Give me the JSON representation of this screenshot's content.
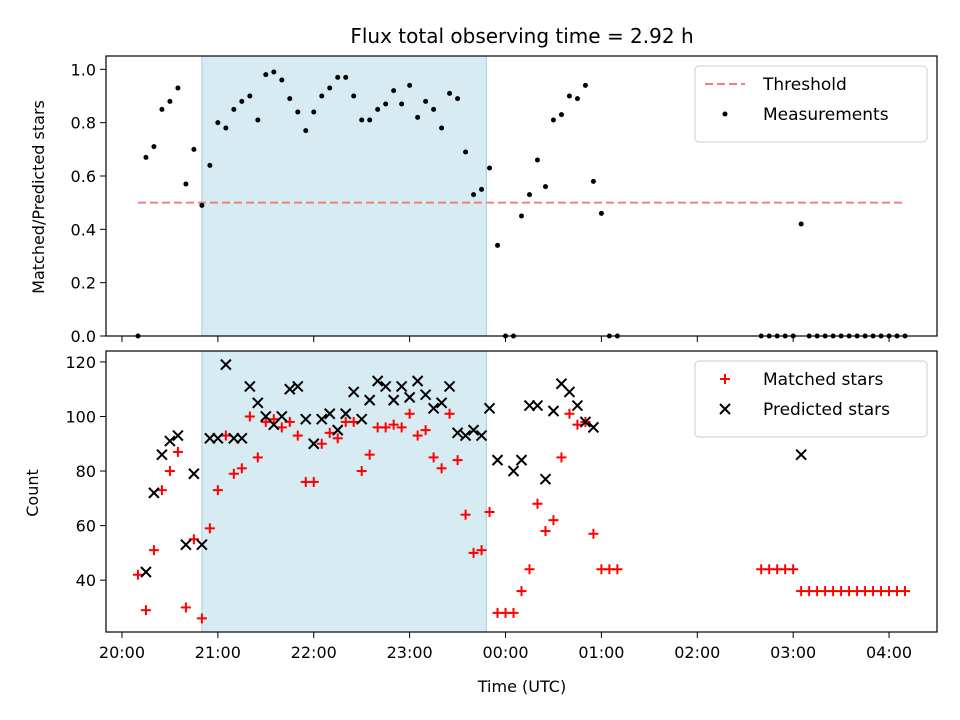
{
  "chart_data": [
    {
      "type": "scatter",
      "title": "Flux total observing time = 2.92 h",
      "xlabel": "",
      "ylabel": "Matched/Predicted stars",
      "xlim": [
        "19:50",
        "04:30"
      ],
      "ylim": [
        0,
        1.05
      ],
      "yticks": [
        "0.0",
        "0.2",
        "0.4",
        "0.6",
        "0.8",
        "1.0"
      ],
      "highlight_span": [
        "20:50",
        "23:48"
      ],
      "threshold": {
        "name": "Threshold",
        "value": 0.5,
        "x": [
          "20:10",
          "04:10"
        ],
        "color": "#f08080"
      },
      "legend_position": "top-right",
      "series": [
        {
          "name": "Measurements",
          "color": "#000000",
          "points": [
            [
              "20:10",
              0.0
            ],
            [
              "20:15",
              0.67
            ],
            [
              "20:20",
              0.71
            ],
            [
              "20:25",
              0.85
            ],
            [
              "20:30",
              0.88
            ],
            [
              "20:35",
              0.93
            ],
            [
              "20:40",
              0.57
            ],
            [
              "20:45",
              0.7
            ],
            [
              "20:50",
              0.49
            ],
            [
              "20:55",
              0.64
            ],
            [
              "21:00",
              0.8
            ],
            [
              "21:05",
              0.78
            ],
            [
              "21:10",
              0.85
            ],
            [
              "21:15",
              0.88
            ],
            [
              "21:20",
              0.9
            ],
            [
              "21:25",
              0.81
            ],
            [
              "21:30",
              0.98
            ],
            [
              "21:35",
              0.99
            ],
            [
              "21:40",
              0.96
            ],
            [
              "21:45",
              0.89
            ],
            [
              "21:50",
              0.84
            ],
            [
              "21:55",
              0.77
            ],
            [
              "22:00",
              0.84
            ],
            [
              "22:05",
              0.9
            ],
            [
              "22:10",
              0.93
            ],
            [
              "22:15",
              0.97
            ],
            [
              "22:20",
              0.97
            ],
            [
              "22:25",
              0.9
            ],
            [
              "22:30",
              0.81
            ],
            [
              "22:35",
              0.81
            ],
            [
              "22:40",
              0.85
            ],
            [
              "22:45",
              0.87
            ],
            [
              "22:50",
              0.92
            ],
            [
              "22:55",
              0.87
            ],
            [
              "23:00",
              0.94
            ],
            [
              "23:05",
              0.82
            ],
            [
              "23:10",
              0.88
            ],
            [
              "23:15",
              0.85
            ],
            [
              "23:20",
              0.78
            ],
            [
              "23:25",
              0.91
            ],
            [
              "23:30",
              0.89
            ],
            [
              "23:35",
              0.69
            ],
            [
              "23:40",
              0.53
            ],
            [
              "23:45",
              0.55
            ],
            [
              "23:50",
              0.63
            ],
            [
              "23:55",
              0.34
            ],
            [
              "24:00",
              0.0
            ],
            [
              "24:05",
              0.0
            ],
            [
              "24:10",
              0.45
            ],
            [
              "24:15",
              0.53
            ],
            [
              "24:20",
              0.66
            ],
            [
              "24:25",
              0.56
            ],
            [
              "24:30",
              0.81
            ],
            [
              "24:35",
              0.83
            ],
            [
              "24:40",
              0.9
            ],
            [
              "24:45",
              0.89
            ],
            [
              "24:50",
              0.94
            ],
            [
              "24:55",
              0.58
            ],
            [
              "25:00",
              0.46
            ],
            [
              "25:05",
              0.0
            ],
            [
              "25:10",
              0.0
            ],
            [
              "26:40",
              0.0
            ],
            [
              "26:45",
              0.0
            ],
            [
              "26:50",
              0.0
            ],
            [
              "26:55",
              0.0
            ],
            [
              "27:00",
              0.0
            ],
            [
              "27:05",
              0.42
            ],
            [
              "27:10",
              0.0
            ],
            [
              "27:15",
              0.0
            ],
            [
              "27:20",
              0.0
            ],
            [
              "27:25",
              0.0
            ],
            [
              "27:30",
              0.0
            ],
            [
              "27:35",
              0.0
            ],
            [
              "27:40",
              0.0
            ],
            [
              "27:45",
              0.0
            ],
            [
              "27:50",
              0.0
            ],
            [
              "27:55",
              0.0
            ],
            [
              "28:00",
              0.0
            ],
            [
              "28:05",
              0.0
            ],
            [
              "28:10",
              0.0
            ]
          ]
        }
      ]
    },
    {
      "type": "scatter",
      "title": "",
      "xlabel": "Time (UTC)",
      "ylabel": "Count",
      "xlim": [
        "19:50",
        "04:30"
      ],
      "ylim": [
        21,
        124
      ],
      "yticks": [
        "40",
        "60",
        "80",
        "100",
        "120"
      ],
      "xticks": [
        "20:00",
        "21:00",
        "22:00",
        "23:00",
        "00:00",
        "01:00",
        "02:00",
        "03:00",
        "04:00"
      ],
      "highlight_span": [
        "20:50",
        "23:48"
      ],
      "legend_position": "top-right",
      "series": [
        {
          "name": "Matched stars",
          "color": "#ff0000",
          "marker": "+",
          "points": [
            [
              "20:10",
              42
            ],
            [
              "20:15",
              29
            ],
            [
              "20:20",
              51
            ],
            [
              "20:25",
              73
            ],
            [
              "20:30",
              80
            ],
            [
              "20:35",
              87
            ],
            [
              "20:40",
              30
            ],
            [
              "20:45",
              55
            ],
            [
              "20:50",
              26
            ],
            [
              "20:55",
              59
            ],
            [
              "21:00",
              73
            ],
            [
              "21:05",
              93
            ],
            [
              "21:10",
              79
            ],
            [
              "21:15",
              81
            ],
            [
              "21:20",
              100
            ],
            [
              "21:25",
              85
            ],
            [
              "21:30",
              98
            ],
            [
              "21:35",
              99
            ],
            [
              "21:40",
              96
            ],
            [
              "21:45",
              98
            ],
            [
              "21:50",
              93
            ],
            [
              "21:55",
              76
            ],
            [
              "22:00",
              76
            ],
            [
              "22:05",
              90
            ],
            [
              "22:10",
              94
            ],
            [
              "22:15",
              92
            ],
            [
              "22:20",
              98
            ],
            [
              "22:25",
              98
            ],
            [
              "22:30",
              80
            ],
            [
              "22:35",
              86
            ],
            [
              "22:40",
              96
            ],
            [
              "22:45",
              96
            ],
            [
              "22:50",
              97
            ],
            [
              "22:55",
              96
            ],
            [
              "23:00",
              101
            ],
            [
              "23:05",
              93
            ],
            [
              "23:10",
              95
            ],
            [
              "23:15",
              85
            ],
            [
              "23:20",
              81
            ],
            [
              "23:25",
              101
            ],
            [
              "23:30",
              84
            ],
            [
              "23:35",
              64
            ],
            [
              "23:40",
              50
            ],
            [
              "23:45",
              51
            ],
            [
              "23:50",
              65
            ],
            [
              "23:55",
              28
            ],
            [
              "24:00",
              28
            ],
            [
              "24:05",
              28
            ],
            [
              "24:10",
              36
            ],
            [
              "24:15",
              44
            ],
            [
              "24:20",
              68
            ],
            [
              "24:25",
              58
            ],
            [
              "24:30",
              62
            ],
            [
              "24:35",
              85
            ],
            [
              "24:40",
              101
            ],
            [
              "24:45",
              97
            ],
            [
              "24:50",
              98
            ],
            [
              "24:55",
              57
            ],
            [
              "25:00",
              44
            ],
            [
              "25:05",
              44
            ],
            [
              "25:10",
              44
            ],
            [
              "26:40",
              44
            ],
            [
              "26:45",
              44
            ],
            [
              "26:50",
              44
            ],
            [
              "26:55",
              44
            ],
            [
              "27:00",
              44
            ],
            [
              "27:05",
              36
            ],
            [
              "27:10",
              36
            ],
            [
              "27:15",
              36
            ],
            [
              "27:20",
              36
            ],
            [
              "27:25",
              36
            ],
            [
              "27:30",
              36
            ],
            [
              "27:35",
              36
            ],
            [
              "27:40",
              36
            ],
            [
              "27:45",
              36
            ],
            [
              "27:50",
              36
            ],
            [
              "27:55",
              36
            ],
            [
              "28:00",
              36
            ],
            [
              "28:05",
              36
            ],
            [
              "28:10",
              36
            ]
          ]
        },
        {
          "name": "Predicted stars",
          "color": "#000000",
          "marker": "x",
          "points": [
            [
              "20:15",
              43
            ],
            [
              "20:20",
              72
            ],
            [
              "20:25",
              86
            ],
            [
              "20:30",
              91
            ],
            [
              "20:35",
              93
            ],
            [
              "20:40",
              53
            ],
            [
              "20:45",
              79
            ],
            [
              "20:50",
              53
            ],
            [
              "20:55",
              92
            ],
            [
              "21:00",
              92
            ],
            [
              "21:05",
              119
            ],
            [
              "21:10",
              92
            ],
            [
              "21:15",
              92
            ],
            [
              "21:20",
              111
            ],
            [
              "21:25",
              105
            ],
            [
              "21:30",
              100
            ],
            [
              "21:35",
              97
            ],
            [
              "21:40",
              100
            ],
            [
              "21:45",
              110
            ],
            [
              "21:50",
              111
            ],
            [
              "21:55",
              99
            ],
            [
              "22:00",
              90
            ],
            [
              "22:05",
              99
            ],
            [
              "22:10",
              101
            ],
            [
              "22:15",
              95
            ],
            [
              "22:20",
              101
            ],
            [
              "22:25",
              109
            ],
            [
              "22:30",
              99
            ],
            [
              "22:35",
              106
            ],
            [
              "22:40",
              113
            ],
            [
              "22:45",
              111
            ],
            [
              "22:50",
              106
            ],
            [
              "22:55",
              111
            ],
            [
              "23:00",
              107
            ],
            [
              "23:05",
              113
            ],
            [
              "23:10",
              108
            ],
            [
              "23:15",
              103
            ],
            [
              "23:20",
              105
            ],
            [
              "23:25",
              111
            ],
            [
              "23:30",
              94
            ],
            [
              "23:35",
              93
            ],
            [
              "23:40",
              95
            ],
            [
              "23:45",
              93
            ],
            [
              "23:50",
              103
            ],
            [
              "23:55",
              84
            ],
            [
              "24:05",
              80
            ],
            [
              "24:10",
              84
            ],
            [
              "24:15",
              104
            ],
            [
              "24:20",
              104
            ],
            [
              "24:25",
              77
            ],
            [
              "24:30",
              102
            ],
            [
              "24:35",
              112
            ],
            [
              "24:40",
              109
            ],
            [
              "24:45",
              104
            ],
            [
              "24:50",
              98
            ],
            [
              "24:55",
              96
            ],
            [
              "27:05",
              86
            ]
          ]
        }
      ]
    }
  ]
}
